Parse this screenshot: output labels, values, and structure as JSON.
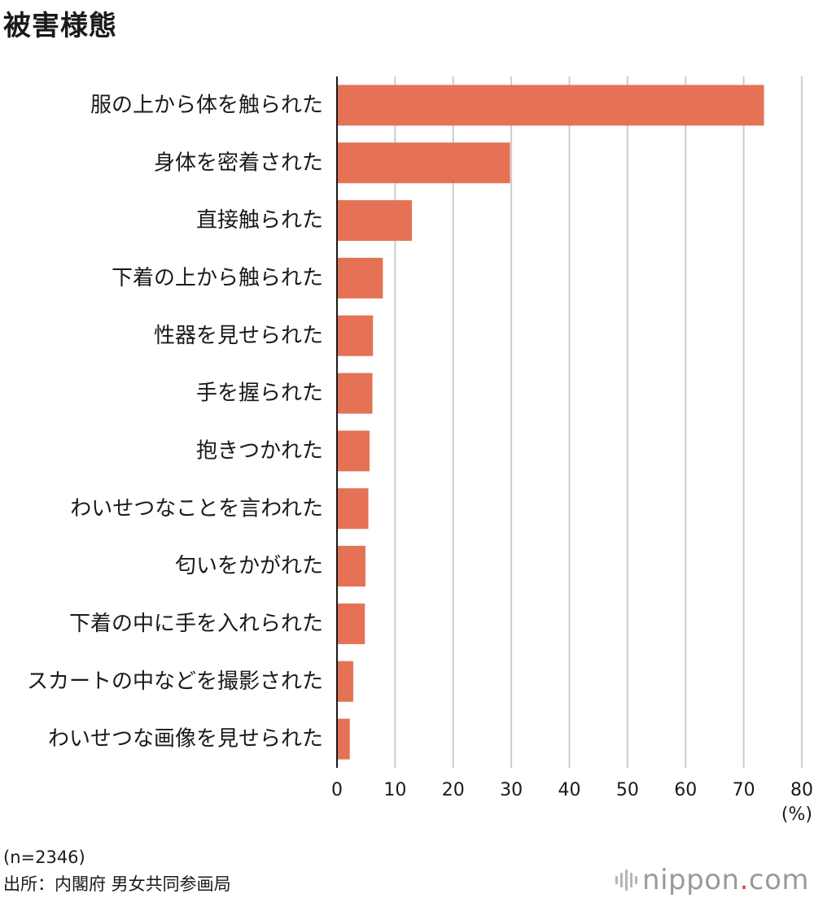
{
  "title": "被害様態",
  "chart_data": {
    "type": "bar",
    "orientation": "horizontal",
    "categories": [
      "服の上から体を触られた",
      "身体を密着された",
      "直接触られた",
      "下着の上から触られた",
      "性器を見せられた",
      "手を握られた",
      "抱きつかれた",
      "わいせつなことを言われた",
      "匂いをかがれた",
      "下着の中に手を入れられた",
      "スカートの中などを撮影された",
      "わいせつな画像を見せられた"
    ],
    "values": [
      73.5,
      29.8,
      12.9,
      7.9,
      6.2,
      6.1,
      5.6,
      5.4,
      4.9,
      4.8,
      2.8,
      2.2
    ],
    "xlim": [
      0,
      80
    ],
    "xticks": [
      "0",
      "10",
      "20",
      "30",
      "40",
      "50",
      "60",
      "70",
      "80"
    ],
    "unit_label": "(%)",
    "grid": true,
    "bar_color": "#e67256",
    "grid_color": "#cccccc"
  },
  "footer": {
    "sample": "(n=2346)",
    "source": "出所：内閣府 男女共同参画局"
  },
  "brand": {
    "name": "nippon",
    "dot": ".",
    "suffix": "com",
    "dot_color": "#e23d3d"
  }
}
